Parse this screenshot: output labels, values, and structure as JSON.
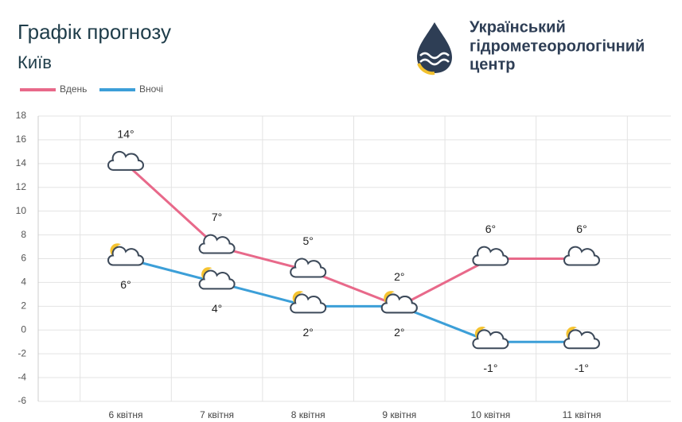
{
  "header": {
    "logo_text": [
      "Український",
      "гідрометеорологічний",
      "центр"
    ]
  },
  "chart_data": {
    "type": "line",
    "title": "Графік прогнозу",
    "subtitle": "Київ",
    "categories": [
      "6 квітня",
      "7 квітня",
      "8 квітня",
      "9 квітня",
      "10 квітня",
      "11 квітня"
    ],
    "series": [
      {
        "name": "Вдень",
        "color": "#e8698a",
        "values": [
          14,
          7,
          5,
          2,
          6,
          6
        ],
        "value_labels": [
          "14°",
          "7°",
          "5°",
          "2°",
          "6°",
          "6°"
        ]
      },
      {
        "name": "Вночі",
        "color": "#3c9fd8",
        "values": [
          6,
          4,
          2,
          2,
          -1,
          -1
        ],
        "value_labels": [
          "6°",
          "4°",
          "2°",
          "2°",
          "-1°",
          "-1°"
        ]
      }
    ],
    "ylim": [
      -6,
      18
    ],
    "yticks": [
      -6,
      -4,
      -2,
      0,
      2,
      4,
      6,
      8,
      10,
      12,
      14,
      16,
      18
    ],
    "grid": true,
    "legend": "top-left"
  }
}
